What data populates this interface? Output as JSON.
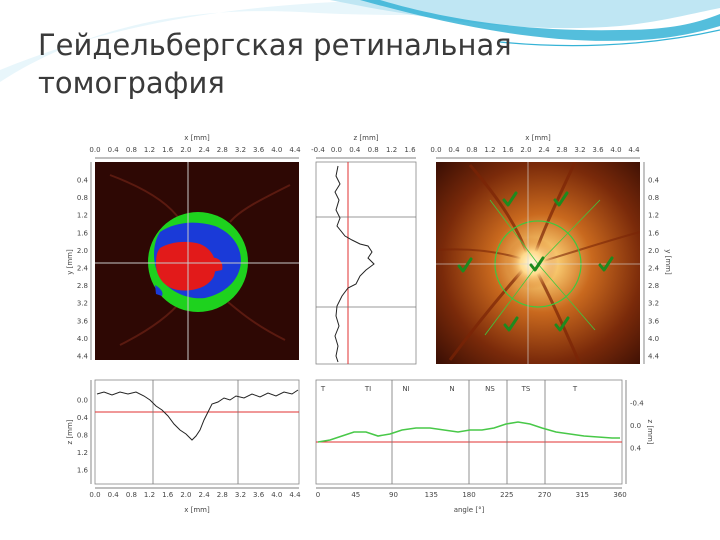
{
  "slide": {
    "title_line1": "Гейдельбергская ретинальная",
    "title_line2": "томография",
    "accent_color": "#36b3d6"
  },
  "panels": {
    "topography": {
      "x_label": "x [mm]",
      "y_label": "y [mm]",
      "x_ticks": [
        "0.0",
        "0.4",
        "0.8",
        "1.2",
        "1.6",
        "2.0",
        "2.4",
        "2.8",
        "3.2",
        "3.6",
        "4.0",
        "4.4"
      ],
      "y_ticks": [
        "0.4",
        "0.8",
        "1.2",
        "1.6",
        "2.0",
        "2.4",
        "2.8",
        "3.2",
        "3.6",
        "4.0",
        "4.4"
      ]
    },
    "vertical_profile": {
      "x_label": "z [mm]",
      "x_ticks": [
        "-0.4",
        "0.0",
        "0.4",
        "0.8",
        "1.2",
        "1.6"
      ]
    },
    "reflectance": {
      "x_label": "x [mm]",
      "y_label": "y [mm]",
      "x_ticks": [
        "0.0",
        "0.4",
        "0.8",
        "1.2",
        "1.6",
        "2.0",
        "2.4",
        "2.8",
        "3.2",
        "3.6",
        "4.0",
        "4.4"
      ],
      "y_ticks": [
        "0.4",
        "0.8",
        "1.2",
        "1.6",
        "2.0",
        "2.4",
        "2.8",
        "3.2",
        "3.6",
        "4.0",
        "4.4"
      ],
      "check_icon": "checkmark-icon"
    },
    "horizontal_profile": {
      "x_label": "x [mm]",
      "y_label": "z [mm]",
      "x_ticks": [
        "0.0",
        "0.4",
        "0.8",
        "1.2",
        "1.6",
        "2.0",
        "2.4",
        "2.8",
        "3.2",
        "3.6",
        "4.0",
        "4.4"
      ],
      "y_ticks": [
        "0.0",
        "0.4",
        "0.8",
        "1.2",
        "1.6"
      ]
    },
    "contour_profile": {
      "x_label": "angle [°]",
      "y_label": "z [mm]",
      "x_ticks": [
        "0",
        "45",
        "90",
        "135",
        "180",
        "225",
        "270",
        "315",
        "360"
      ],
      "y_ticks": [
        "-0.4",
        "0.0",
        "0.4"
      ],
      "sector_labels": [
        "T",
        "TI",
        "NI",
        "N",
        "NS",
        "TS",
        "T"
      ]
    }
  }
}
